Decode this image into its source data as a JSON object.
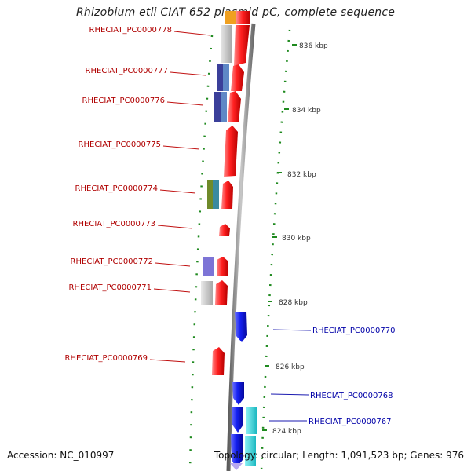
{
  "title": "Rhizobium etli CIAT 652 plasmid pC, complete sequence",
  "footer": {
    "accession": "Accession: NC_010997",
    "summary": "Topology: circular; Length: 1,091,523 bp; Genes: 976"
  },
  "ruler": [
    {
      "label": "836 kbp"
    },
    {
      "label": "834 kbp"
    },
    {
      "label": "832 kbp"
    },
    {
      "label": "830 kbp"
    },
    {
      "label": "828 kbp"
    },
    {
      "label": "826 kbp"
    },
    {
      "label": "824 kbp"
    }
  ],
  "left_labels": [
    "RHECIAT_PC0000778",
    "RHECIAT_PC0000777",
    "RHECIAT_PC0000776",
    "RHECIAT_PC0000775",
    "RHECIAT_PC0000774",
    "RHECIAT_PC0000773",
    "RHECIAT_PC0000772",
    "RHECIAT_PC0000771",
    "RHECIAT_PC0000769"
  ],
  "right_labels": [
    "RHECIAT_PC0000770",
    "RHECIAT_PC0000768",
    "RHECIAT_PC0000767"
  ],
  "colors": {
    "forward_gene": "#e8000b",
    "reverse_gene": "#0a14e0",
    "left_label": "#b00000",
    "right_label": "#0000a8",
    "tick": "#1f8a1f",
    "backbone": "#8a8a8a",
    "cog_gray": "#c4c4c4",
    "cog_navy": "#3b3f9a",
    "cog_steel": "#5f88c6",
    "cog_olive": "#6f8a2a",
    "cog_teal": "#3a8aa0",
    "cog_lavender": "#7d74d6",
    "cog_cyan": "#29cfd6",
    "cog_orange": "#f0a020",
    "cog_purple": "#b8a8f0"
  }
}
